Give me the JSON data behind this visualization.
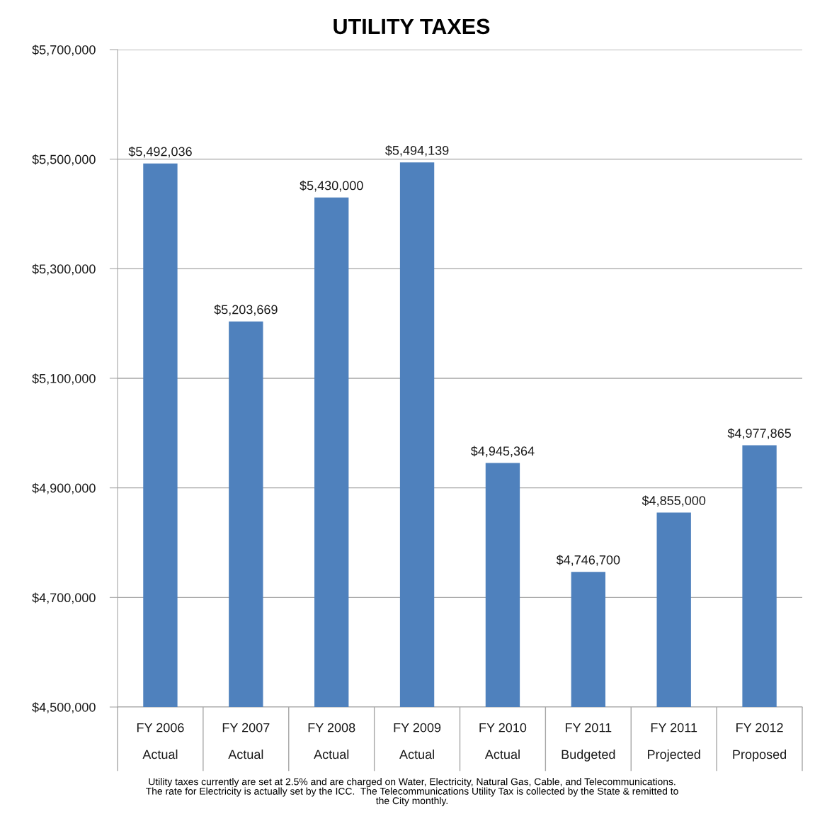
{
  "chart_data": {
    "type": "bar",
    "title": "UTILITY TAXES",
    "categories": [
      "FY 2006\nActual",
      "FY 2007\nActual",
      "FY 2008\nActual",
      "FY 2009\nActual",
      "FY 2010\nActual",
      "FY 2011\nBudgeted",
      "FY 2011\nProjected",
      "FY 2012\nProposed"
    ],
    "values": [
      5492036,
      5203669,
      5430000,
      5494139,
      4945364,
      4746700,
      4855000,
      4977865
    ],
    "value_labels": [
      "$5,492,036",
      "$5,203,669",
      "$5,430,000",
      "$5,494,139",
      "$4,945,364",
      "$4,746,700",
      "$4,855,000",
      "$4,977,865"
    ],
    "color": "#4f81bd",
    "ylim": [
      4500000,
      5700000
    ],
    "yticks": [
      {
        "value": 4500000,
        "label": "$4,500,000"
      },
      {
        "value": 4700000,
        "label": "$4,700,000"
      },
      {
        "value": 4900000,
        "label": "$4,900,000"
      },
      {
        "value": 5100000,
        "label": "$5,100,000"
      },
      {
        "value": 5300000,
        "label": "$5,300,000"
      },
      {
        "value": 5500000,
        "label": "$5,500,000"
      },
      {
        "value": 5700000,
        "label": "$5,700,000"
      }
    ],
    "grid": "y",
    "annotations": [
      "Utility taxes currently are set at 2.5% and are charged on Water, Electricity, Natural Gas, Cable, and Telecommunications.\nThe rate for Electricity is actually set by the ICC.  The Telecommunications Utility Tax is collected by the State & remitted to\nthe City monthly."
    ]
  }
}
